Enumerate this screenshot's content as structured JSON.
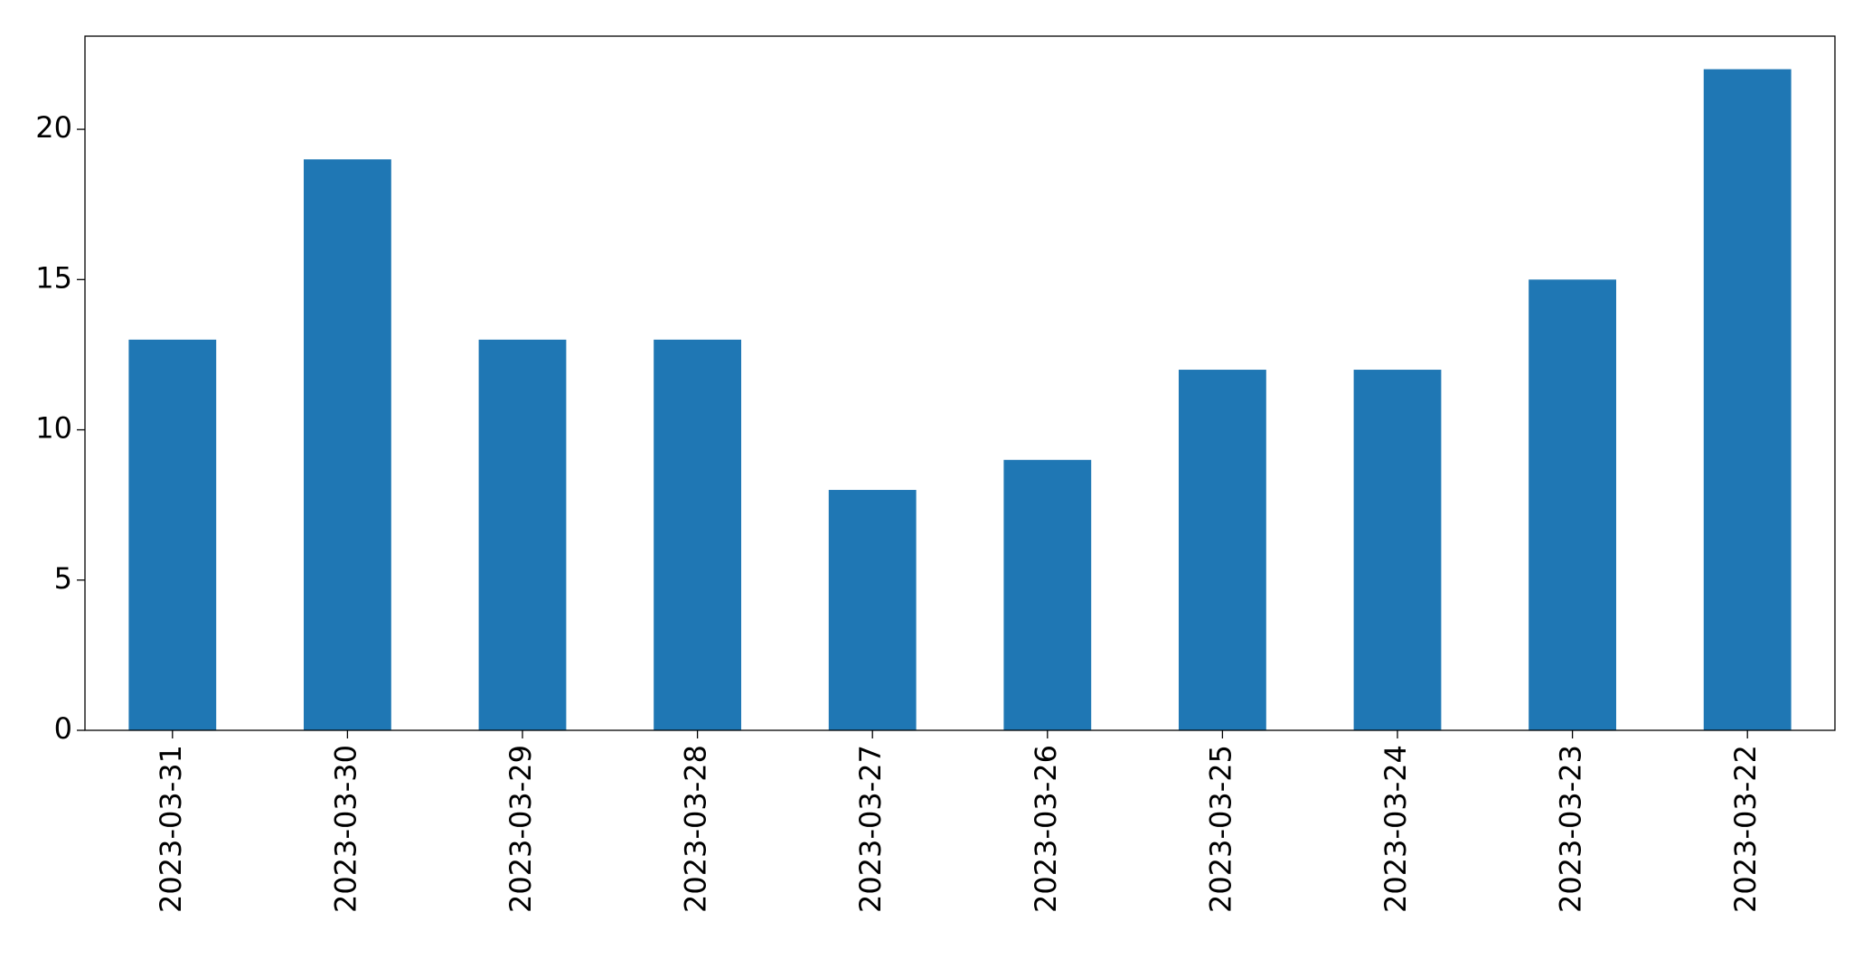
{
  "chart_data": {
    "type": "bar",
    "categories": [
      "2023-03-31",
      "2023-03-30",
      "2023-03-29",
      "2023-03-28",
      "2023-03-27",
      "2023-03-26",
      "2023-03-25",
      "2023-03-24",
      "2023-03-23",
      "2023-03-22"
    ],
    "values": [
      13,
      19,
      13,
      13,
      8,
      9,
      12,
      12,
      15,
      22
    ],
    "color": "#1f77b4",
    "ylim": [
      0,
      23.1
    ],
    "yticks": [
      0,
      5,
      10,
      15,
      20
    ],
    "grid": false
  }
}
